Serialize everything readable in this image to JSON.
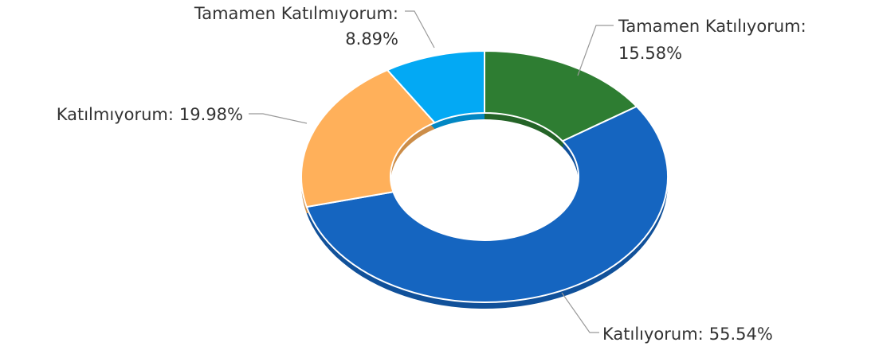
{
  "chart_data": {
    "type": "donut",
    "categories": [
      "Tamamen Katılıyorum:",
      "Katılıyorum:",
      "Katılmıyorum:",
      "Tamamen Katılmıyorum:"
    ],
    "values": [
      15.58,
      55.54,
      19.98,
      8.89
    ],
    "value_labels": [
      "15.58%",
      "55.54%",
      "19.98%",
      "8.89%"
    ],
    "colors": [
      "#2e7d32",
      "#1565c0",
      "#ffb05a",
      "#03a9f4"
    ]
  }
}
